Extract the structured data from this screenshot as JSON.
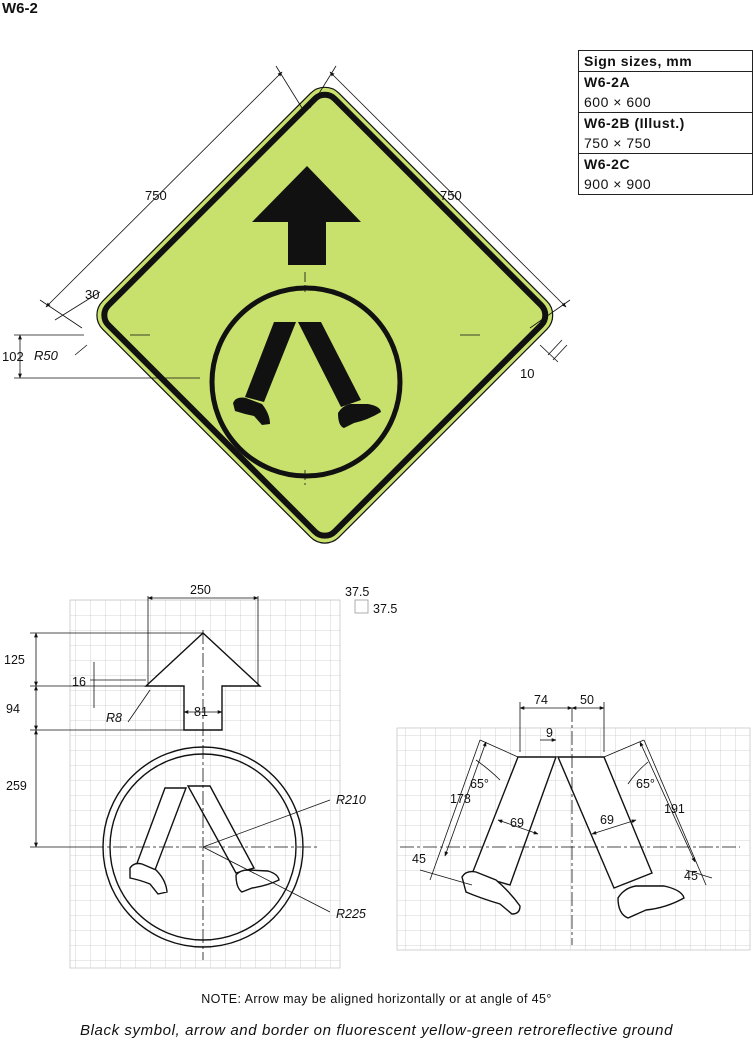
{
  "sign_code": "W6-2",
  "size_table": {
    "header": "Sign sizes, mm",
    "rows": [
      {
        "name": "W6-2A",
        "size": "600 × 600"
      },
      {
        "name": "W6-2B (Illust.)",
        "size": "750 × 750"
      },
      {
        "name": "W6-2C",
        "size": "900 × 900"
      }
    ]
  },
  "colors": {
    "ground": "#c8e06c",
    "symbol": "#111111",
    "grid": "#c8c8c8"
  },
  "sign_dims": {
    "side_left": "750",
    "side_right": "750",
    "border_offset": "30",
    "corner_radius": "R50",
    "corner_height": "102",
    "border_width": "10"
  },
  "grid_legend": {
    "cell_w": "37.5",
    "cell_h": "37.5"
  },
  "arrow_dims": {
    "width": "250",
    "head": "125",
    "notch": "16",
    "tip_radius": "R8",
    "shaft": "94",
    "shaft_width": "81",
    "gap": "259",
    "ring_inner": "R210",
    "ring_outer": "R225"
  },
  "legs_dims": {
    "left_offset": "74",
    "right_offset": "50",
    "gap": "9",
    "angle_left": "65°",
    "angle_right": "65°",
    "leg_left_len": "178",
    "leg_right_len": "191",
    "leg_left_width": "69",
    "leg_right_width": "69",
    "foot_left": "45",
    "foot_right": "45"
  },
  "note": "NOTE: Arrow may be aligned horizontally or at angle of 45°",
  "caption": "Black symbol, arrow and border on fluorescent yellow-green retroreflective ground"
}
